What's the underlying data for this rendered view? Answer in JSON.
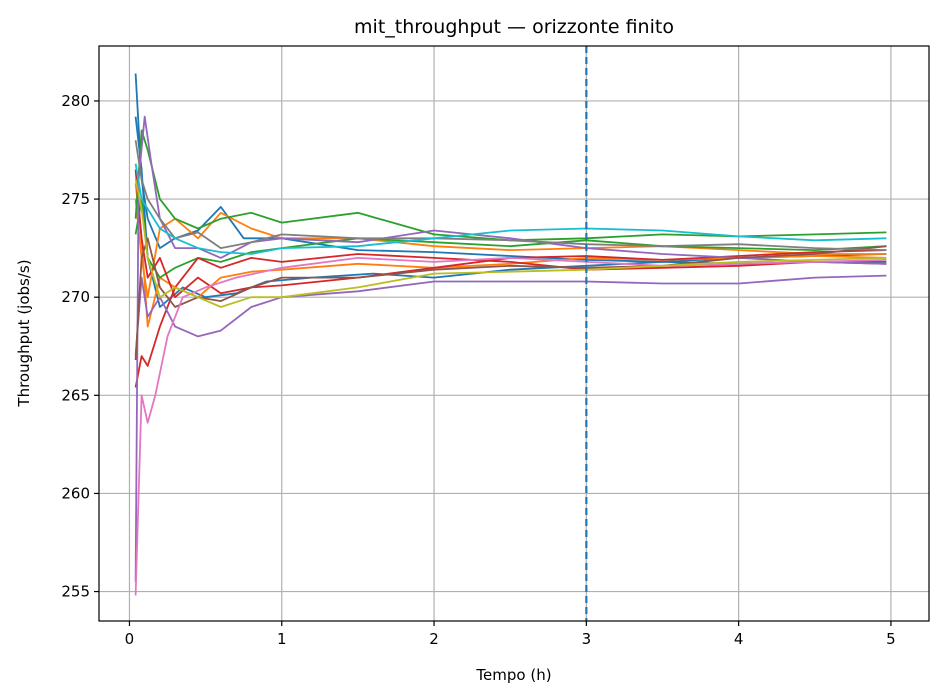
{
  "chart_data": {
    "type": "line",
    "title": "mit_throughput — orizzonte finito",
    "xlabel": "Tempo (h)",
    "ylabel": "Throughput (jobs/s)",
    "xlim": [
      -0.2,
      5.25
    ],
    "ylim": [
      253.5,
      282.8
    ],
    "xticks": [
      0,
      1,
      2,
      3,
      4,
      5
    ],
    "yticks": [
      255,
      260,
      265,
      270,
      275,
      280
    ],
    "grid": true,
    "vline": {
      "x": 3,
      "style": "dashed",
      "color": "#1f77b4"
    },
    "palette": [
      "#1f77b4",
      "#ff7f0e",
      "#2ca02c",
      "#d62728",
      "#9467bd",
      "#8c564b",
      "#e377c2",
      "#7f7f7f",
      "#bcbd22",
      "#17becf"
    ],
    "series": [
      {
        "color": "#1f77b4",
        "points": [
          [
            0.04,
            281.4
          ],
          [
            0.08,
            276.0
          ],
          [
            0.12,
            274.0
          ],
          [
            0.2,
            272.5
          ],
          [
            0.3,
            273.0
          ],
          [
            0.45,
            273.4
          ],
          [
            0.6,
            274.6
          ],
          [
            0.75,
            273.0
          ],
          [
            1.0,
            273.0
          ],
          [
            1.5,
            272.4
          ],
          [
            2.0,
            272.3
          ],
          [
            2.5,
            272.1
          ],
          [
            3.0,
            271.9
          ],
          [
            3.5,
            271.8
          ],
          [
            4.0,
            271.7
          ],
          [
            4.5,
            271.8
          ],
          [
            4.97,
            271.8
          ]
        ]
      },
      {
        "color": "#1f77b4",
        "points": [
          [
            0.04,
            279.2
          ],
          [
            0.08,
            276.5
          ],
          [
            0.12,
            272.0
          ],
          [
            0.2,
            269.5
          ],
          [
            0.35,
            270.5
          ],
          [
            0.5,
            270.0
          ],
          [
            0.7,
            270.2
          ],
          [
            0.9,
            270.8
          ],
          [
            1.2,
            271.0
          ],
          [
            1.6,
            271.2
          ],
          [
            2.0,
            271.0
          ],
          [
            2.5,
            271.4
          ],
          [
            3.0,
            271.6
          ],
          [
            3.5,
            271.8
          ],
          [
            4.0,
            272.0
          ],
          [
            4.5,
            272.1
          ],
          [
            4.97,
            272.2
          ]
        ]
      },
      {
        "color": "#ff7f0e",
        "points": [
          [
            0.04,
            275.0
          ],
          [
            0.08,
            272.0
          ],
          [
            0.12,
            270.0
          ],
          [
            0.2,
            273.5
          ],
          [
            0.3,
            274.0
          ],
          [
            0.45,
            273.0
          ],
          [
            0.6,
            274.3
          ],
          [
            0.8,
            273.5
          ],
          [
            1.0,
            273.0
          ],
          [
            1.5,
            273.0
          ],
          [
            2.0,
            272.6
          ],
          [
            2.5,
            272.4
          ],
          [
            3.0,
            272.5
          ],
          [
            3.5,
            272.6
          ],
          [
            4.0,
            272.4
          ],
          [
            4.5,
            272.2
          ],
          [
            4.97,
            272.2
          ]
        ]
      },
      {
        "color": "#ff7f0e",
        "points": [
          [
            0.04,
            275.8
          ],
          [
            0.08,
            273.0
          ],
          [
            0.12,
            268.5
          ],
          [
            0.2,
            271.0
          ],
          [
            0.3,
            270.5
          ],
          [
            0.45,
            270.0
          ],
          [
            0.6,
            271.0
          ],
          [
            0.8,
            271.3
          ],
          [
            1.0,
            271.4
          ],
          [
            1.5,
            271.7
          ],
          [
            2.0,
            271.5
          ],
          [
            2.5,
            271.7
          ],
          [
            3.0,
            272.0
          ],
          [
            3.5,
            271.9
          ],
          [
            4.0,
            272.0
          ],
          [
            4.5,
            272.1
          ],
          [
            4.97,
            272.0
          ]
        ]
      },
      {
        "color": "#2ca02c",
        "points": [
          [
            0.04,
            274.0
          ],
          [
            0.08,
            278.5
          ],
          [
            0.12,
            277.5
          ],
          [
            0.2,
            275.0
          ],
          [
            0.3,
            274.0
          ],
          [
            0.45,
            273.5
          ],
          [
            0.6,
            274.0
          ],
          [
            0.8,
            274.3
          ],
          [
            1.0,
            273.8
          ],
          [
            1.5,
            274.3
          ],
          [
            2.0,
            273.2
          ],
          [
            2.5,
            272.9
          ],
          [
            3.0,
            273.0
          ],
          [
            3.5,
            273.2
          ],
          [
            4.0,
            273.1
          ],
          [
            4.5,
            273.2
          ],
          [
            4.97,
            273.3
          ]
        ]
      },
      {
        "color": "#2ca02c",
        "points": [
          [
            0.04,
            273.2
          ],
          [
            0.08,
            275.0
          ],
          [
            0.12,
            272.0
          ],
          [
            0.2,
            271.0
          ],
          [
            0.3,
            271.5
          ],
          [
            0.45,
            272.0
          ],
          [
            0.6,
            271.8
          ],
          [
            0.8,
            272.3
          ],
          [
            1.0,
            272.5
          ],
          [
            1.5,
            273.0
          ],
          [
            2.0,
            272.8
          ],
          [
            2.5,
            272.6
          ],
          [
            3.0,
            272.9
          ],
          [
            3.5,
            272.6
          ],
          [
            4.0,
            272.5
          ],
          [
            4.5,
            272.4
          ],
          [
            4.97,
            272.6
          ]
        ]
      },
      {
        "color": "#d62728",
        "points": [
          [
            0.04,
            276.5
          ],
          [
            0.08,
            273.0
          ],
          [
            0.12,
            271.0
          ],
          [
            0.2,
            272.0
          ],
          [
            0.3,
            270.0
          ],
          [
            0.45,
            271.0
          ],
          [
            0.6,
            270.2
          ],
          [
            0.8,
            270.5
          ],
          [
            1.0,
            270.6
          ],
          [
            1.5,
            271.0
          ],
          [
            2.0,
            271.5
          ],
          [
            2.5,
            272.0
          ],
          [
            3.0,
            272.1
          ],
          [
            3.5,
            271.9
          ],
          [
            4.0,
            272.1
          ],
          [
            4.5,
            272.3
          ],
          [
            4.97,
            272.4
          ]
        ]
      },
      {
        "color": "#d62728",
        "points": [
          [
            0.04,
            265.4
          ],
          [
            0.08,
            267.0
          ],
          [
            0.12,
            266.5
          ],
          [
            0.2,
            268.5
          ],
          [
            0.3,
            270.5
          ],
          [
            0.45,
            272.0
          ],
          [
            0.6,
            271.5
          ],
          [
            0.8,
            272.0
          ],
          [
            1.0,
            271.8
          ],
          [
            1.5,
            272.2
          ],
          [
            2.0,
            272.0
          ],
          [
            2.5,
            271.8
          ],
          [
            3.0,
            271.4
          ],
          [
            3.5,
            271.5
          ],
          [
            4.0,
            271.6
          ],
          [
            4.5,
            271.8
          ],
          [
            4.97,
            271.7
          ]
        ]
      },
      {
        "color": "#9467bd",
        "points": [
          [
            0.04,
            255.5
          ],
          [
            0.06,
            276.0
          ],
          [
            0.1,
            279.2
          ],
          [
            0.14,
            277.0
          ],
          [
            0.2,
            274.0
          ],
          [
            0.3,
            272.5
          ],
          [
            0.45,
            272.5
          ],
          [
            0.6,
            272.0
          ],
          [
            0.8,
            272.8
          ],
          [
            1.0,
            273.0
          ],
          [
            1.5,
            272.8
          ],
          [
            2.0,
            273.4
          ],
          [
            2.5,
            273.0
          ],
          [
            3.0,
            272.5
          ],
          [
            3.5,
            272.2
          ],
          [
            4.0,
            272.0
          ],
          [
            4.5,
            271.8
          ],
          [
            4.97,
            271.7
          ]
        ]
      },
      {
        "color": "#9467bd",
        "points": [
          [
            0.04,
            267.0
          ],
          [
            0.08,
            271.0
          ],
          [
            0.12,
            269.0
          ],
          [
            0.2,
            270.0
          ],
          [
            0.3,
            268.5
          ],
          [
            0.45,
            268.0
          ],
          [
            0.6,
            268.3
          ],
          [
            0.8,
            269.5
          ],
          [
            1.0,
            270.0
          ],
          [
            1.5,
            270.3
          ],
          [
            2.0,
            270.8
          ],
          [
            2.5,
            270.8
          ],
          [
            3.0,
            270.8
          ],
          [
            3.5,
            270.7
          ],
          [
            4.0,
            270.7
          ],
          [
            4.5,
            271.0
          ],
          [
            4.97,
            271.1
          ]
        ]
      },
      {
        "color": "#8c564b",
        "points": [
          [
            0.04,
            266.8
          ],
          [
            0.08,
            272.0
          ],
          [
            0.12,
            273.0
          ],
          [
            0.2,
            270.5
          ],
          [
            0.3,
            269.5
          ],
          [
            0.45,
            270.0
          ],
          [
            0.6,
            269.8
          ],
          [
            0.8,
            270.5
          ],
          [
            1.0,
            271.0
          ],
          [
            1.5,
            271.0
          ],
          [
            2.0,
            271.4
          ],
          [
            2.5,
            271.6
          ],
          [
            3.0,
            271.5
          ],
          [
            3.5,
            271.6
          ],
          [
            4.0,
            272.0
          ],
          [
            4.5,
            272.2
          ],
          [
            4.97,
            272.6
          ]
        ]
      },
      {
        "color": "#e377c2",
        "points": [
          [
            0.04,
            254.8
          ],
          [
            0.08,
            265.0
          ],
          [
            0.12,
            263.6
          ],
          [
            0.17,
            265.0
          ],
          [
            0.25,
            268.0
          ],
          [
            0.35,
            270.0
          ],
          [
            0.5,
            270.5
          ],
          [
            0.7,
            271.0
          ],
          [
            1.0,
            271.5
          ],
          [
            1.5,
            272.0
          ],
          [
            2.0,
            271.8
          ],
          [
            2.5,
            272.0
          ],
          [
            3.0,
            271.8
          ],
          [
            3.5,
            271.6
          ],
          [
            4.0,
            271.7
          ],
          [
            4.5,
            271.8
          ],
          [
            4.97,
            271.9
          ]
        ]
      },
      {
        "color": "#7f7f7f",
        "points": [
          [
            0.04,
            278.0
          ],
          [
            0.08,
            276.0
          ],
          [
            0.12,
            275.0
          ],
          [
            0.2,
            274.0
          ],
          [
            0.3,
            273.0
          ],
          [
            0.45,
            273.3
          ],
          [
            0.6,
            272.5
          ],
          [
            0.8,
            272.8
          ],
          [
            1.0,
            273.2
          ],
          [
            1.5,
            273.0
          ],
          [
            2.0,
            273.0
          ],
          [
            2.5,
            272.9
          ],
          [
            3.0,
            272.7
          ],
          [
            3.5,
            272.6
          ],
          [
            4.0,
            272.7
          ],
          [
            4.5,
            272.5
          ],
          [
            4.97,
            272.4
          ]
        ]
      },
      {
        "color": "#bcbd22",
        "points": [
          [
            0.04,
            276.0
          ],
          [
            0.08,
            274.5
          ],
          [
            0.12,
            272.0
          ],
          [
            0.2,
            270.0
          ],
          [
            0.3,
            270.5
          ],
          [
            0.45,
            270.0
          ],
          [
            0.6,
            269.5
          ],
          [
            0.8,
            270.0
          ],
          [
            1.0,
            270.0
          ],
          [
            1.5,
            270.5
          ],
          [
            2.0,
            271.2
          ],
          [
            2.5,
            271.3
          ],
          [
            3.0,
            271.4
          ],
          [
            3.5,
            271.6
          ],
          [
            4.0,
            271.8
          ],
          [
            4.5,
            271.9
          ],
          [
            4.97,
            272.0
          ]
        ]
      },
      {
        "color": "#17becf",
        "points": [
          [
            0.04,
            276.8
          ],
          [
            0.08,
            275.0
          ],
          [
            0.12,
            274.5
          ],
          [
            0.2,
            273.5
          ],
          [
            0.3,
            273.0
          ],
          [
            0.45,
            272.5
          ],
          [
            0.6,
            272.3
          ],
          [
            0.8,
            272.2
          ],
          [
            1.0,
            272.5
          ],
          [
            1.5,
            272.6
          ],
          [
            2.0,
            273.0
          ],
          [
            2.5,
            273.4
          ],
          [
            3.0,
            273.5
          ],
          [
            3.5,
            273.4
          ],
          [
            4.0,
            273.1
          ],
          [
            4.5,
            272.9
          ],
          [
            4.97,
            273.0
          ]
        ]
      }
    ]
  }
}
